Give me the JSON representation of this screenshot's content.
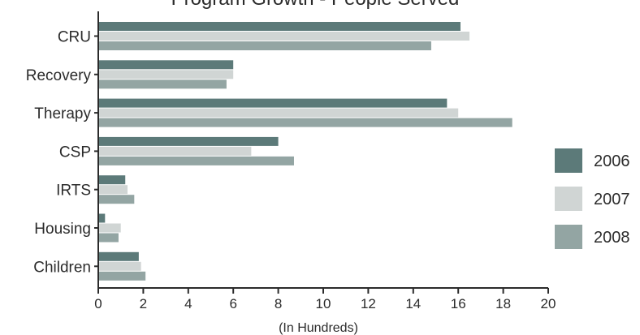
{
  "chart_data": {
    "type": "bar",
    "orientation": "horizontal",
    "title": "Program Growth - People Served",
    "xlabel": "(In Hundreds)",
    "ylabel": "",
    "xlim": [
      0,
      20
    ],
    "xticks": [
      0,
      2,
      4,
      6,
      8,
      10,
      12,
      14,
      16,
      18,
      20
    ],
    "categories": [
      "CRU",
      "Recovery",
      "Therapy",
      "CSP",
      "IRTS",
      "Housing",
      "Children"
    ],
    "series": [
      {
        "name": "2006",
        "color": "#5c7a79",
        "values": [
          16.1,
          6.0,
          15.5,
          8.0,
          1.2,
          0.3,
          1.8
        ]
      },
      {
        "name": "2007",
        "color": "#d0d5d4",
        "values": [
          16.5,
          6.0,
          16.0,
          6.8,
          1.3,
          1.0,
          1.9
        ]
      },
      {
        "name": "2008",
        "color": "#93a5a3",
        "values": [
          14.8,
          5.7,
          18.4,
          8.7,
          1.6,
          0.9,
          2.1
        ]
      }
    ],
    "grid": false,
    "legend": "right"
  }
}
